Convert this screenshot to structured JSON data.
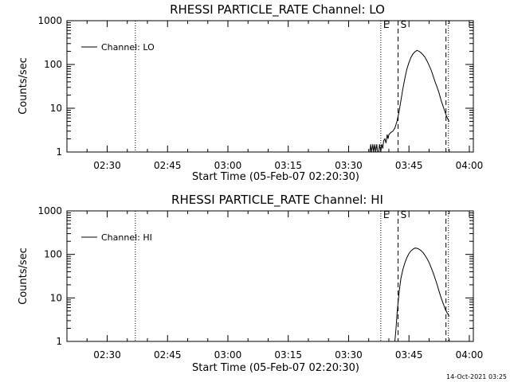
{
  "footer": {
    "timestamp": "14-Oct-2021 03:25"
  },
  "colors": {
    "background": "#ffffff",
    "foreground": "#000000"
  },
  "chart_data": [
    {
      "type": "line",
      "title": "RHESSI PARTICLE_RATE Channel: LO",
      "xlabel": "Start Time (05-Feb-07 02:20:30)",
      "ylabel": "Counts/sec",
      "yscale": "log",
      "ylim": [
        1,
        1000
      ],
      "xlim_minutes": [
        0,
        101
      ],
      "x_ticks": [
        {
          "min": 10,
          "label": "02:30"
        },
        {
          "min": 25,
          "label": "02:45"
        },
        {
          "min": 40,
          "label": "03:00"
        },
        {
          "min": 55,
          "label": "03:15"
        },
        {
          "min": 70,
          "label": "03:30"
        },
        {
          "min": 85,
          "label": "03:45"
        },
        {
          "min": 100,
          "label": "04:00"
        }
      ],
      "y_ticks": [
        {
          "v": 1,
          "label": "1"
        },
        {
          "v": 10,
          "label": "10"
        },
        {
          "v": 100,
          "label": "100"
        },
        {
          "v": 1000,
          "label": "1000"
        }
      ],
      "legend": {
        "label": "Channel: LO",
        "position": "top-left"
      },
      "vlines": [
        {
          "min": 17.0,
          "style": "dotted"
        },
        {
          "min": 78.0,
          "style": "dotted",
          "label": "E"
        },
        {
          "min": 82.3,
          "style": "dashed",
          "label": "S"
        },
        {
          "min": 94.2,
          "style": "dashed"
        },
        {
          "min": 94.8,
          "style": "dotted"
        }
      ],
      "series": [
        {
          "name": "Channel: LO",
          "x": [
            75.3,
            75.5,
            75.7,
            76.0,
            76.2,
            76.5,
            76.7,
            77.0,
            77.2,
            77.5,
            77.7,
            78.0,
            78.2,
            78.5,
            78.7,
            79.0,
            79.3,
            79.6,
            79.8,
            80.0,
            80.5,
            81.0,
            81.5,
            82.0,
            82.5,
            83.0,
            83.5,
            84.0,
            84.5,
            85.0,
            85.5,
            86.0,
            86.5,
            87.0,
            87.5,
            88.0,
            88.5,
            89.0,
            89.5,
            90.0,
            90.5,
            91.0,
            91.5,
            92.0,
            92.5,
            93.0,
            93.5,
            94.0,
            94.5,
            95.0
          ],
          "y": [
            1,
            1.5,
            1,
            1.5,
            1,
            1.5,
            1,
            1.5,
            1,
            1,
            1.5,
            1,
            1.5,
            1.2,
            1.8,
            2.0,
            1.6,
            2.5,
            2.0,
            2.5,
            2.8,
            3.0,
            3.5,
            5,
            8,
            15,
            28,
            50,
            80,
            110,
            145,
            175,
            195,
            210,
            200,
            185,
            165,
            145,
            120,
            95,
            75,
            55,
            40,
            30,
            22,
            15,
            11,
            8,
            6,
            5
          ]
        }
      ]
    },
    {
      "type": "line",
      "title": "RHESSI PARTICLE_RATE Channel: HI",
      "xlabel": "Start Time (05-Feb-07 02:20:30)",
      "ylabel": "Counts/sec",
      "yscale": "log",
      "ylim": [
        1,
        1000
      ],
      "xlim_minutes": [
        0,
        101
      ],
      "x_ticks": [
        {
          "min": 10,
          "label": "02:30"
        },
        {
          "min": 25,
          "label": "02:45"
        },
        {
          "min": 40,
          "label": "03:00"
        },
        {
          "min": 55,
          "label": "03:15"
        },
        {
          "min": 70,
          "label": "03:30"
        },
        {
          "min": 85,
          "label": "03:45"
        },
        {
          "min": 100,
          "label": "04:00"
        }
      ],
      "y_ticks": [
        {
          "v": 1,
          "label": "1"
        },
        {
          "v": 10,
          "label": "10"
        },
        {
          "v": 100,
          "label": "100"
        },
        {
          "v": 1000,
          "label": "1000"
        }
      ],
      "legend": {
        "label": "Channel: HI",
        "position": "top-left"
      },
      "vlines": [
        {
          "min": 17.0,
          "style": "dotted"
        },
        {
          "min": 78.0,
          "style": "dotted",
          "label": "E"
        },
        {
          "min": 82.3,
          "style": "dashed",
          "label": "S"
        },
        {
          "min": 94.2,
          "style": "dashed"
        },
        {
          "min": 94.8,
          "style": "dotted"
        }
      ],
      "series": [
        {
          "name": "Channel: HI",
          "x": [
            81.5,
            81.8,
            82.0,
            82.3,
            82.6,
            83.0,
            83.5,
            84.0,
            84.5,
            85.0,
            85.5,
            86.0,
            86.5,
            87.0,
            87.5,
            88.0,
            88.5,
            89.0,
            89.5,
            90.0,
            90.5,
            91.0,
            91.5,
            92.0,
            92.5,
            93.0,
            93.5,
            94.0,
            94.5,
            95.0
          ],
          "y": [
            1,
            2,
            4,
            8,
            15,
            28,
            45,
            65,
            85,
            105,
            120,
            132,
            140,
            138,
            132,
            122,
            110,
            95,
            80,
            65,
            50,
            38,
            28,
            20,
            14,
            10,
            7.5,
            5.5,
            4.5,
            3.8
          ]
        }
      ]
    }
  ]
}
